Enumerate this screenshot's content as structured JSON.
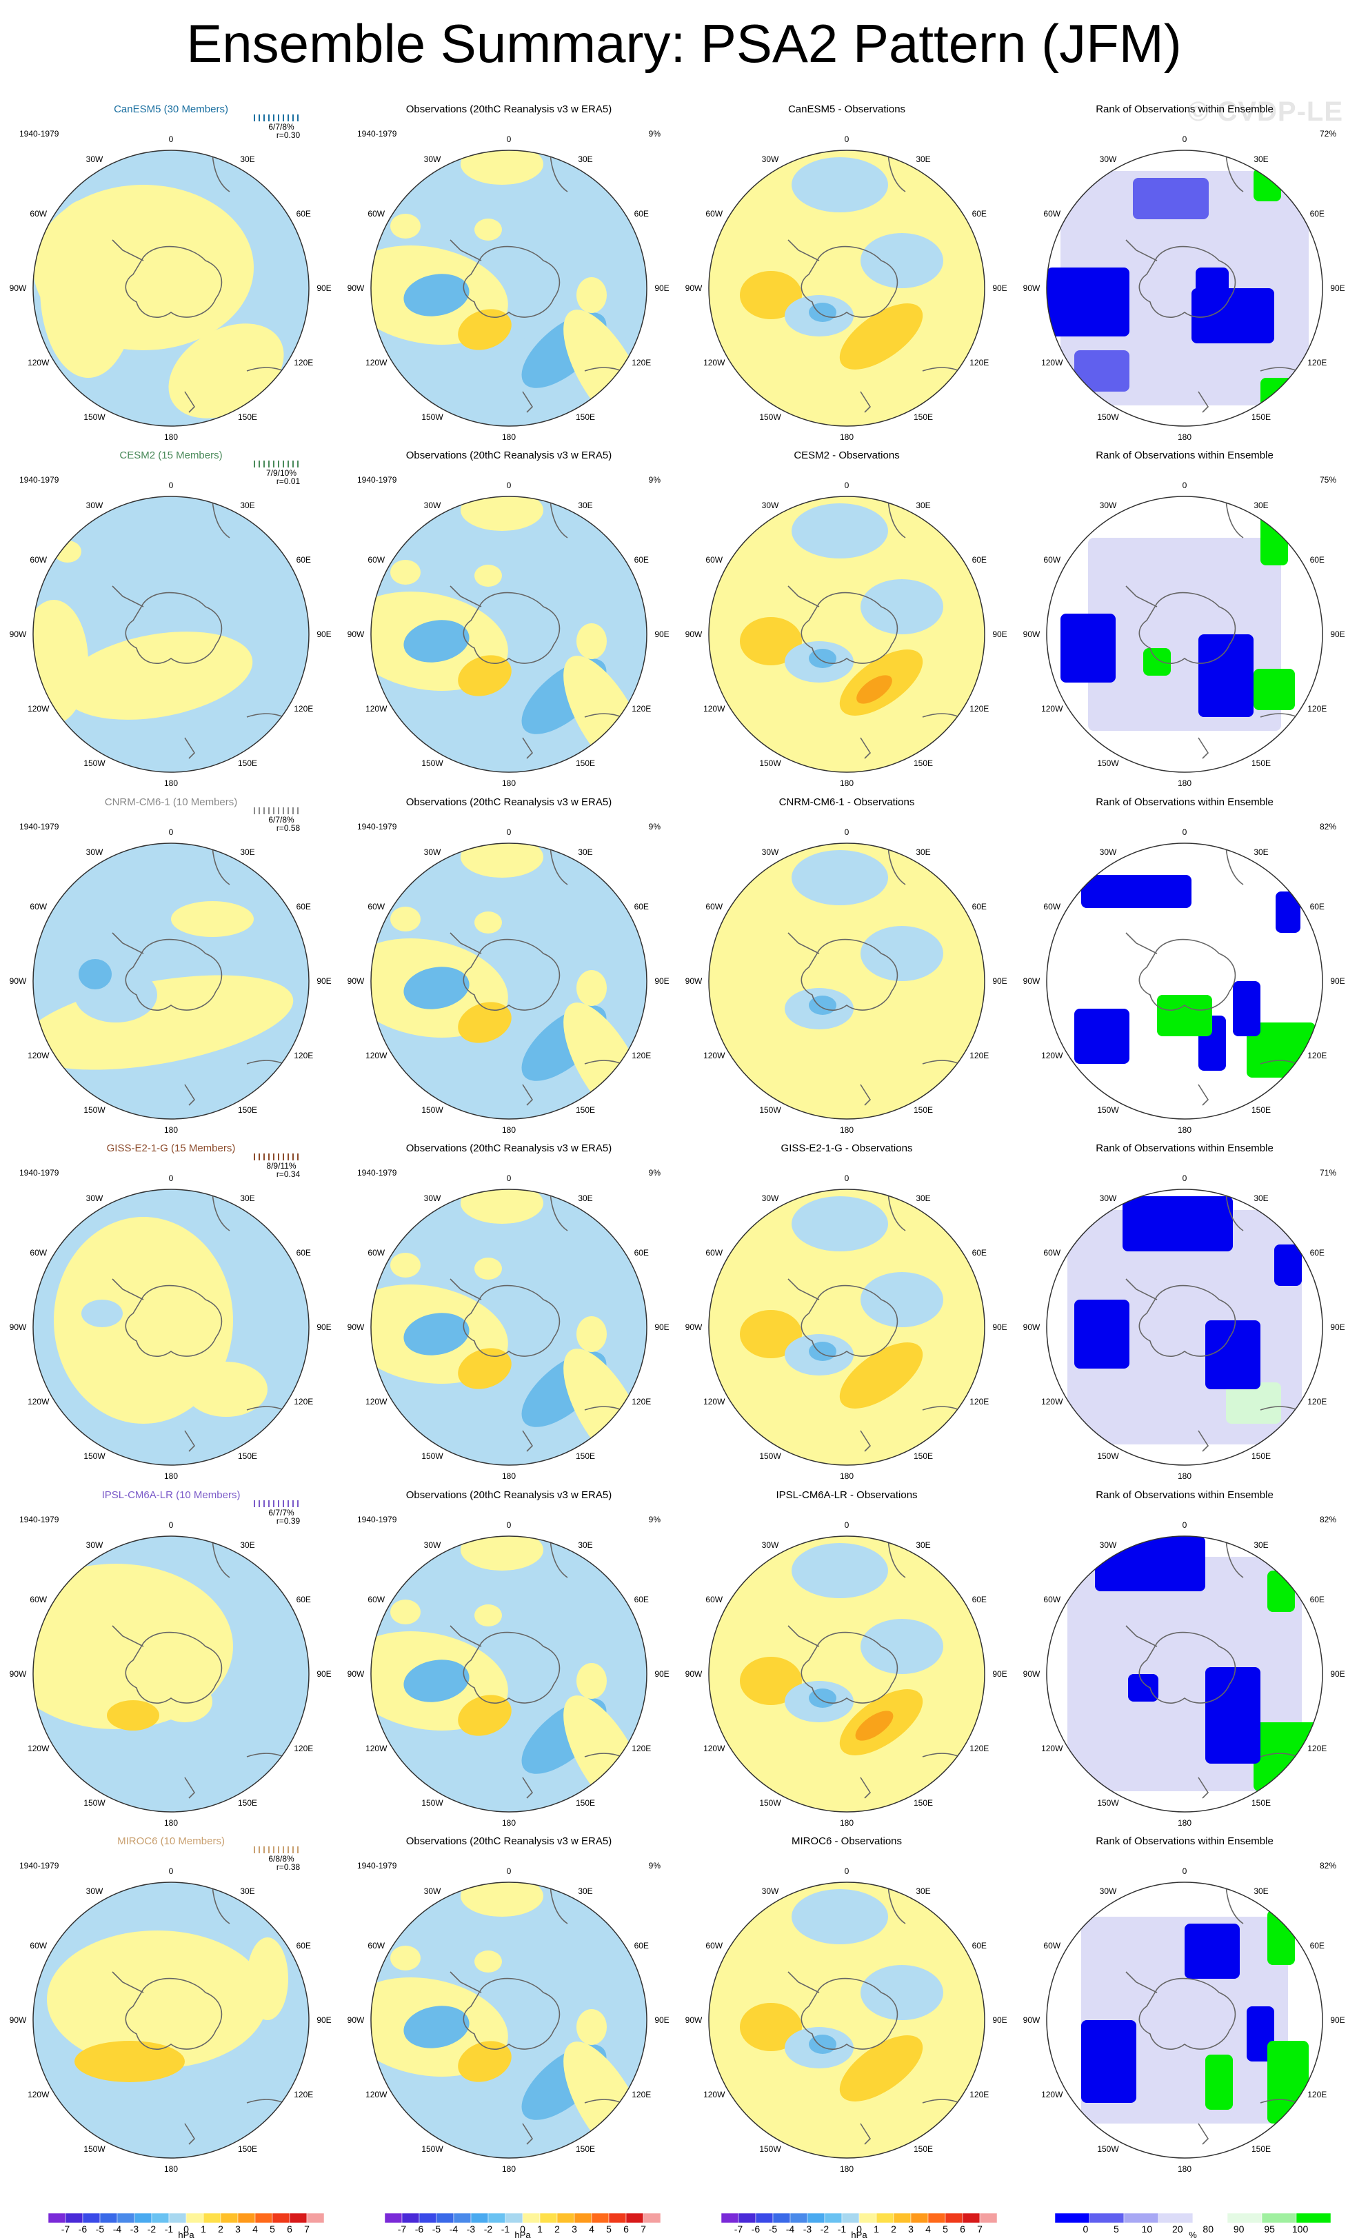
{
  "title": "Ensemble Summary: PSA2 Pattern (JFM)",
  "watermark": "© CVDP-LE",
  "obs_title": "Observations (20thC Reanalysis v3 w ERA5)",
  "rank_title": "Rank of Observations within Ensemble",
  "period": "1940-1979",
  "obs_pct": "9%",
  "lon_labels": [
    "0",
    "30E",
    "60E",
    "90E",
    "120E",
    "150E",
    "180",
    "150W",
    "120W",
    "90W",
    "60W",
    "30W"
  ],
  "rows": [
    {
      "model": "CanESM5 (30 Members)",
      "model_color": "#1a6fa0",
      "diff_title": "CanESM5 - Observations",
      "stats": "6/7/8%",
      "r": "r=0.30",
      "rank_pct": "72%"
    },
    {
      "model": "CESM2 (15 Members)",
      "model_color": "#4a8a5a",
      "diff_title": "CESM2 - Observations",
      "stats": "7/9/10%",
      "r": "r=0.01",
      "rank_pct": "75%"
    },
    {
      "model": "CNRM-CM6-1 (10 Members)",
      "model_color": "#8a8a8a",
      "diff_title": "CNRM-CM6-1 - Observations",
      "stats": "6/7/8%",
      "r": "r=0.58",
      "rank_pct": "82%"
    },
    {
      "model": "GISS-E2-1-G (15 Members)",
      "model_color": "#8b4a2a",
      "diff_title": "GISS-E2-1-G - Observations",
      "stats": "8/9/11%",
      "r": "r=0.34",
      "rank_pct": "71%"
    },
    {
      "model": "IPSL-CM6A-LR (10 Members)",
      "model_color": "#7a5ac8",
      "diff_title": "IPSL-CM6A-LR - Observations",
      "stats": "6/7/7%",
      "r": "r=0.39",
      "rank_pct": "82%"
    },
    {
      "model": "MIROC6 (10 Members)",
      "model_color": "#c9a070",
      "diff_title": "MIROC6 - Observations",
      "stats": "6/8/8%",
      "r": "r=0.38",
      "rank_pct": "82%"
    }
  ],
  "colorbar_hpa": {
    "labels": [
      "-7",
      "-6",
      "-5",
      "-4",
      "-3",
      "-2",
      "-1",
      "0",
      "1",
      "2",
      "3",
      "4",
      "5",
      "6",
      "7"
    ],
    "units": "hPa",
    "colors": [
      "#7a2ad8",
      "#4a2ad8",
      "#3a4ae8",
      "#3a6ae8",
      "#4a8aea",
      "#4aaaf0",
      "#6ac2f2",
      "#a8d8f0",
      "#fff69a",
      "#ffe04a",
      "#ffc02a",
      "#ff9a1a",
      "#ff6a1a",
      "#f03a1a",
      "#d81a1a",
      "#f4a0a0"
    ]
  },
  "colorbar_rank": {
    "labels": [
      "0",
      "5",
      "10",
      "20",
      "80",
      "90",
      "95",
      "100"
    ],
    "units": "%",
    "colors": [
      "#0000ff",
      "#6060f0",
      "#a8a8f4",
      "#dcdcf8",
      "#ffffff",
      "#e4fae4",
      "#a0f0a0",
      "#00ee00"
    ]
  },
  "chart_data": {
    "type": "heatmap",
    "projection": "south polar stereographic",
    "columns": [
      "model ensemble mean",
      "Observations (20thC Reanalysis v3 w ERA5)",
      "model - Observations",
      "Rank of Observations within Ensemble"
    ],
    "units": "hPa",
    "contour_levels": [
      -7,
      -6,
      -5,
      -4,
      -3,
      -2,
      -1,
      0,
      1,
      2,
      3,
      4,
      5,
      6,
      7
    ],
    "rank_levels": [
      0,
      5,
      10,
      20,
      80,
      90,
      95,
      100
    ]
  }
}
